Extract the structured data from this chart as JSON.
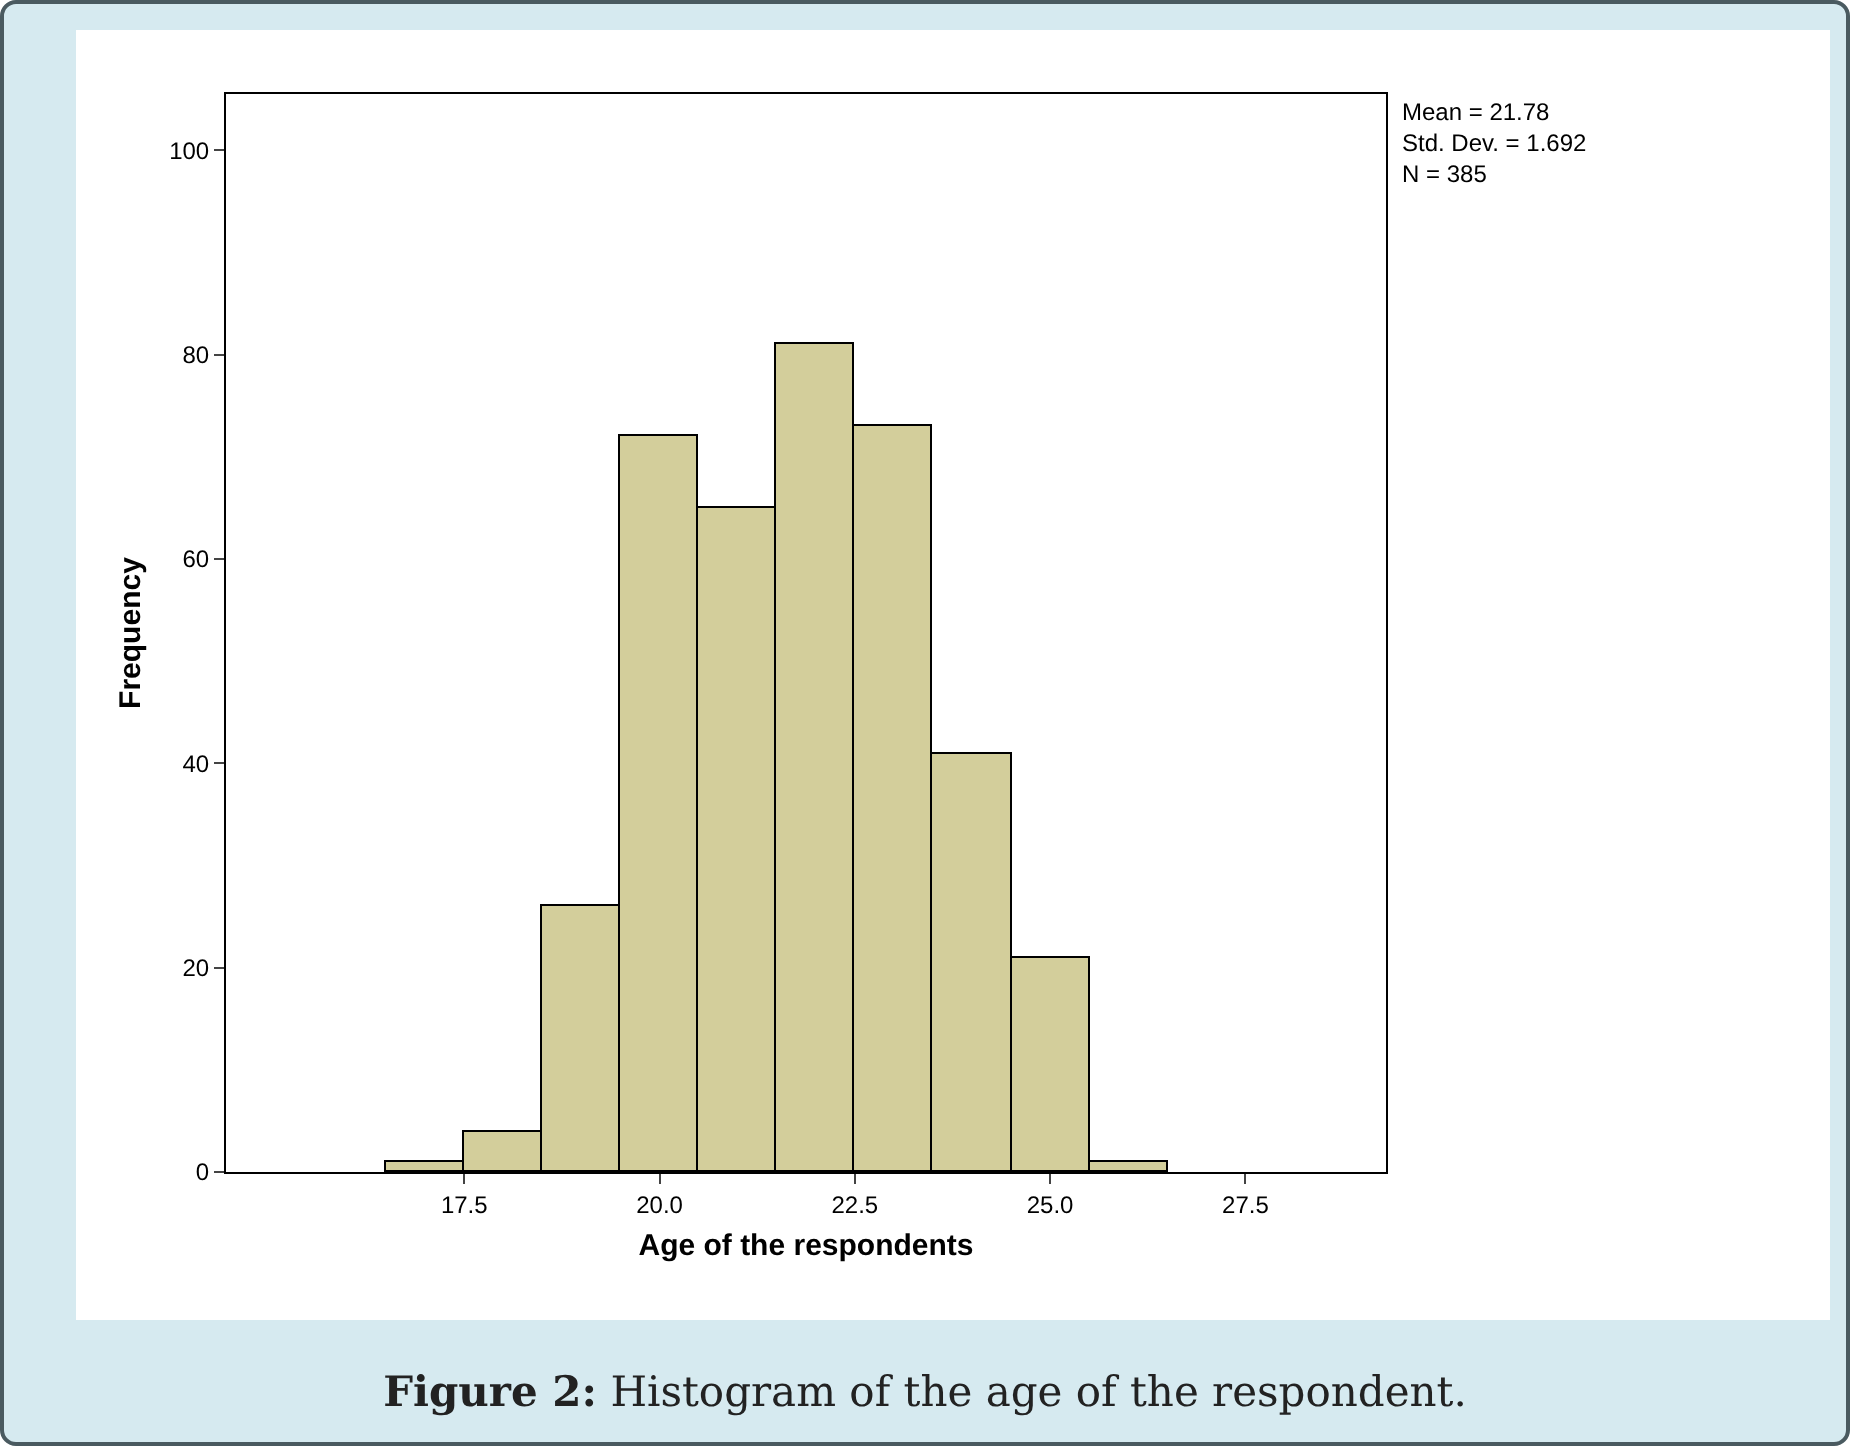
{
  "chart_data": {
    "type": "histogram",
    "xlabel": "Age of the respondents",
    "ylabel": "Frequency",
    "bins": [
      16.5,
      17.5,
      18.5,
      19.5,
      20.5,
      21.5,
      22.5,
      23.5,
      24.5,
      25.5,
      26.5
    ],
    "values": [
      1,
      4,
      26,
      72,
      65,
      81,
      73,
      41,
      21,
      1
    ],
    "color": "#d3ce9b",
    "xlim": [
      14.45,
      29.3
    ],
    "xticks": [
      {
        "value": 17.5,
        "label": "17.5"
      },
      {
        "value": 20,
        "label": "20.0"
      },
      {
        "value": 22.5,
        "label": "22.5"
      },
      {
        "value": 25,
        "label": "25.0"
      },
      {
        "value": 27.5,
        "label": "27.5"
      }
    ],
    "ylim": [
      0,
      105.5
    ],
    "yticks": [
      0,
      20,
      40,
      60,
      80,
      100
    ],
    "grid": false,
    "annotations": [
      "Mean = 21.78",
      "Std. Dev. = 1.692",
      "N = 385",
      "Figure 2: Histogram of the age of the respondent."
    ]
  }
}
